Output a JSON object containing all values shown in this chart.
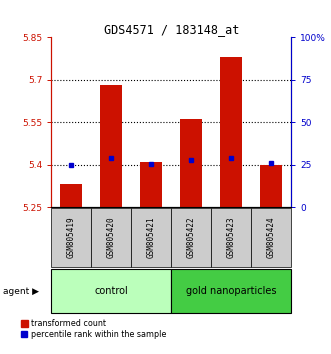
{
  "title": "GDS4571 / 183148_at",
  "samples": [
    "GSM805419",
    "GSM805420",
    "GSM805421",
    "GSM805422",
    "GSM805423",
    "GSM805424"
  ],
  "red_values": [
    5.33,
    5.68,
    5.41,
    5.56,
    5.78,
    5.4
  ],
  "blue_values": [
    5.4,
    5.425,
    5.403,
    5.415,
    5.425,
    5.406
  ],
  "y_min": 5.25,
  "y_max": 5.85,
  "y_ticks_left": [
    5.25,
    5.4,
    5.55,
    5.7,
    5.85
  ],
  "y_ticks_right": [
    0,
    25,
    50,
    75,
    100
  ],
  "y_ticks_right_labels": [
    "0",
    "25",
    "50",
    "75",
    "100%"
  ],
  "grid_lines": [
    5.4,
    5.55,
    5.7
  ],
  "group_labels": [
    "control",
    "gold nanoparticles"
  ],
  "group_ranges": [
    [
      0,
      3
    ],
    [
      3,
      6
    ]
  ],
  "group_colors_light": [
    "#bbffbb",
    "#44cc44"
  ],
  "bar_color": "#cc1100",
  "dot_color": "#0000cc",
  "bar_width": 0.55,
  "baseline": 5.25,
  "left_axis_color": "#cc1100",
  "right_axis_color": "#0000cc",
  "sample_label_bg": "#cccccc",
  "legend_labels": [
    "transformed count",
    "percentile rank within the sample"
  ]
}
